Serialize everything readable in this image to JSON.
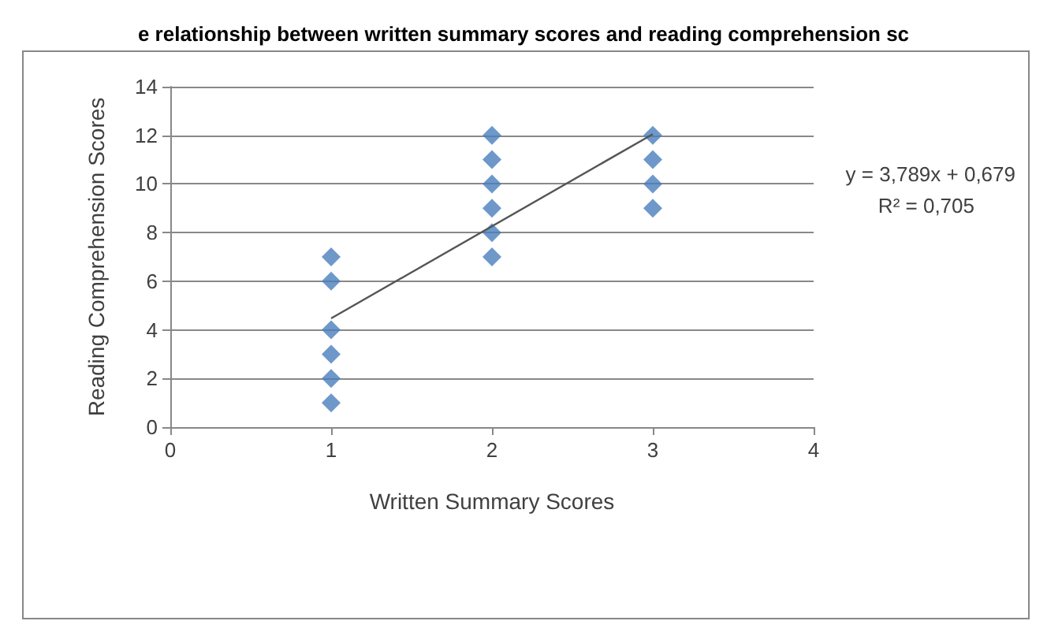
{
  "chart_data": {
    "type": "scatter",
    "title": "e relationship between written summary scores and reading comprehension sc",
    "xlabel": "Written Summary Scores",
    "ylabel": "Reading Comprehension Scores",
    "series": [
      {
        "color": "#4a7ebb",
        "marker": "diamond",
        "x": [
          1,
          1,
          1,
          1,
          1,
          1,
          2,
          2,
          2,
          2,
          2,
          2,
          3,
          3,
          3,
          3
        ],
        "values": [
          1,
          2,
          3,
          4,
          6,
          7,
          7,
          8,
          9,
          10,
          11,
          12,
          9,
          10,
          11,
          12
        ]
      },
      {
        "type": "line",
        "color": "#555555",
        "marker": "none",
        "x": [
          1,
          3
        ],
        "values": [
          4.47,
          12.05
        ]
      }
    ],
    "xlim": [
      0,
      4
    ],
    "xticks": [
      0,
      1,
      2,
      3,
      4
    ],
    "ylim": [
      0,
      14
    ],
    "yticks": [
      0,
      2,
      4,
      6,
      8,
      10,
      12,
      14
    ],
    "grid": "y",
    "annotations": [
      "y = 3,789x + 0,679",
      "R² = 0,705"
    ]
  }
}
